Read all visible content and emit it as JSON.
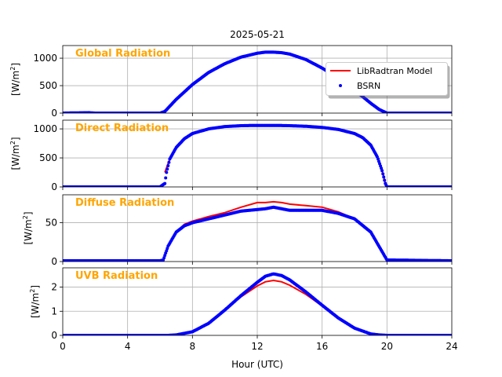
{
  "figure": {
    "title": "2025-05-21",
    "xlabel": "Hour (UTC)",
    "ylabel_prefix": "[W/m",
    "ylabel_exp": "2",
    "ylabel_suffix": "]",
    "legend": {
      "placement": "top-right",
      "model_label": "LibRadtran Model",
      "obs_label": "BSRN"
    },
    "colors": {
      "model": "#ff0000",
      "obs": "#0000ff",
      "panel_title": "#ffa500",
      "grid": "#b0b0b0"
    }
  },
  "chart_data": [
    {
      "type": "line",
      "title": "Global Radiation",
      "xlim": [
        0,
        24
      ],
      "ylim": [
        0,
        1230
      ],
      "xticks": [
        0,
        4,
        8,
        12,
        16,
        20,
        24
      ],
      "yticks": [
        0,
        500,
        1000
      ],
      "grid": true,
      "series": [
        {
          "name": "LibRadtran Model",
          "style": "line",
          "x": [
            0,
            6,
            6.3,
            7,
            8,
            9,
            10,
            11,
            12,
            12.5,
            13,
            13.5,
            14,
            15,
            16,
            17,
            18,
            19,
            19.5,
            20,
            24
          ],
          "y": [
            0,
            0,
            30,
            250,
            520,
            740,
            900,
            1020,
            1090,
            1105,
            1105,
            1095,
            1070,
            975,
            820,
            640,
            420,
            180,
            70,
            0,
            0
          ]
        },
        {
          "name": "BSRN",
          "style": "points",
          "x": [
            0,
            1.6,
            2,
            6,
            6.3,
            7,
            8,
            9,
            10,
            11,
            12,
            12.5,
            13,
            13.5,
            14,
            15,
            16,
            17,
            18,
            19,
            19.5,
            20,
            24
          ],
          "y": [
            0,
            8,
            0,
            0,
            30,
            250,
            520,
            740,
            900,
            1020,
            1090,
            1110,
            1110,
            1100,
            1075,
            975,
            820,
            640,
            420,
            180,
            70,
            0,
            0
          ]
        }
      ]
    },
    {
      "type": "line",
      "title": "Direct Radiation",
      "xlim": [
        0,
        24
      ],
      "ylim": [
        0,
        1150
      ],
      "xticks": [
        0,
        4,
        8,
        12,
        16,
        20,
        24
      ],
      "yticks": [
        0,
        500,
        1000
      ],
      "grid": true,
      "series": [
        {
          "name": "LibRadtran Model",
          "style": "line",
          "x": [
            6.3,
            6.6,
            7,
            7.5,
            8,
            9,
            10,
            11,
            12,
            13,
            14,
            15,
            16,
            17,
            18,
            18.5,
            19,
            19.4,
            19.7,
            19.9,
            20
          ],
          "y": [
            250,
            480,
            680,
            830,
            920,
            1000,
            1035,
            1050,
            1055,
            1055,
            1050,
            1040,
            1025,
            990,
            920,
            850,
            720,
            520,
            280,
            60,
            0
          ]
        },
        {
          "name": "BSRN",
          "style": "points",
          "x": [
            0,
            6,
            6.3,
            6.4,
            6.6,
            7,
            7.5,
            8,
            9,
            10,
            11,
            12,
            13,
            14,
            15,
            16,
            17,
            18,
            18.5,
            19,
            19.4,
            19.7,
            19.9,
            20,
            24
          ],
          "y": [
            0,
            0,
            60,
            250,
            480,
            680,
            830,
            920,
            1000,
            1040,
            1055,
            1060,
            1060,
            1055,
            1045,
            1025,
            990,
            920,
            850,
            720,
            520,
            280,
            60,
            0,
            0
          ]
        }
      ]
    },
    {
      "type": "line",
      "title": "Diffuse Radiation",
      "xlim": [
        0,
        24
      ],
      "ylim": [
        0,
        86
      ],
      "xticks": [
        0,
        4,
        8,
        12,
        16,
        20,
        24
      ],
      "yticks": [
        0,
        50
      ],
      "grid": true,
      "series": [
        {
          "name": "LibRadtran Model",
          "style": "line",
          "x": [
            6.2,
            6.5,
            7,
            7.5,
            8,
            9,
            10,
            11,
            12,
            12.5,
            13,
            13.5,
            14,
            15,
            16,
            17,
            18,
            19,
            19.5,
            20
          ],
          "y": [
            2,
            20,
            38,
            48,
            52,
            58,
            63,
            70,
            76,
            76,
            77,
            76,
            74,
            72,
            70,
            64,
            55,
            38,
            20,
            2
          ]
        },
        {
          "name": "BSRN",
          "style": "points",
          "x": [
            0,
            6,
            6.2,
            6.5,
            7,
            7.5,
            8,
            9,
            10,
            11,
            12,
            12.5,
            13,
            13.5,
            14,
            15,
            16,
            17,
            18,
            19,
            19.5,
            20,
            24
          ],
          "y": [
            1,
            1,
            2,
            20,
            38,
            46,
            50,
            55,
            60,
            65,
            67,
            68,
            70,
            68,
            66,
            66,
            66,
            62,
            55,
            38,
            20,
            2,
            1
          ]
        }
      ]
    },
    {
      "type": "line",
      "title": "UVB Radiation",
      "xlim": [
        0,
        24
      ],
      "ylim": [
        0,
        2.8
      ],
      "xticks": [
        0,
        4,
        8,
        12,
        16,
        20,
        24
      ],
      "yticks": [
        0,
        1,
        2
      ],
      "grid": true,
      "series": [
        {
          "name": "LibRadtran Model",
          "style": "line",
          "x": [
            0,
            6.5,
            7,
            8,
            9,
            10,
            11,
            12,
            12.5,
            13,
            13.5,
            14,
            15,
            16,
            17,
            18,
            19,
            19.5,
            20,
            24
          ],
          "y": [
            0,
            0,
            0.02,
            0.15,
            0.5,
            1.05,
            1.6,
            2.05,
            2.22,
            2.28,
            2.22,
            2.08,
            1.7,
            1.22,
            0.72,
            0.3,
            0.06,
            0.02,
            0,
            0
          ]
        },
        {
          "name": "BSRN",
          "style": "points",
          "x": [
            0,
            6.5,
            7,
            8,
            9,
            10,
            11,
            12,
            12.5,
            13,
            13.5,
            14,
            15,
            16,
            17,
            18,
            19,
            19.5,
            20,
            24
          ],
          "y": [
            0,
            0,
            0.02,
            0.15,
            0.5,
            1.05,
            1.65,
            2.2,
            2.45,
            2.55,
            2.48,
            2.3,
            1.8,
            1.25,
            0.72,
            0.3,
            0.06,
            0.02,
            0,
            0
          ]
        }
      ]
    }
  ]
}
